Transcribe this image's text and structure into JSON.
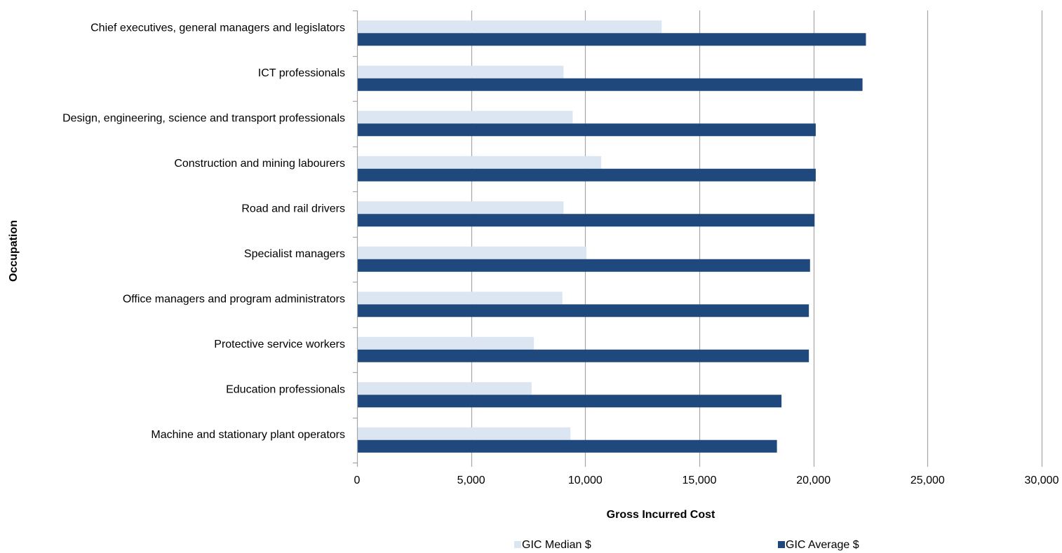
{
  "chart_data": {
    "type": "bar",
    "orientation": "horizontal",
    "categories": [
      "Chief executives, general managers and legislators",
      "ICT professionals",
      "Design, engineering, science and transport professionals",
      "Construction and mining labourers",
      "Road and rail drivers",
      "Specialist managers",
      "Office managers and program administrators",
      "Protective service workers",
      "Education professionals",
      "Machine and stationary plant operators"
    ],
    "series": [
      {
        "name": "GIC Median $",
        "color": "#dce6f2",
        "values": [
          13350,
          9050,
          9450,
          10700,
          9050,
          10050,
          9000,
          7750,
          7650,
          9350
        ]
      },
      {
        "name": "GIC Average $",
        "color": "#1f497d",
        "values": [
          22300,
          22150,
          20100,
          20100,
          20050,
          19850,
          19800,
          19800,
          18600,
          18400
        ]
      }
    ],
    "xlabel": "Gross Incurred Cost",
    "ylabel": "Occupation",
    "xlim": [
      0,
      30000
    ],
    "xticks": [
      0,
      5000,
      10000,
      15000,
      20000,
      25000,
      30000
    ],
    "xtick_labels": [
      "0",
      "5,000",
      "10,000",
      "15,000",
      "20,000",
      "25,000",
      "30,000"
    ],
    "grid": "vertical",
    "legend_position": "bottom"
  }
}
